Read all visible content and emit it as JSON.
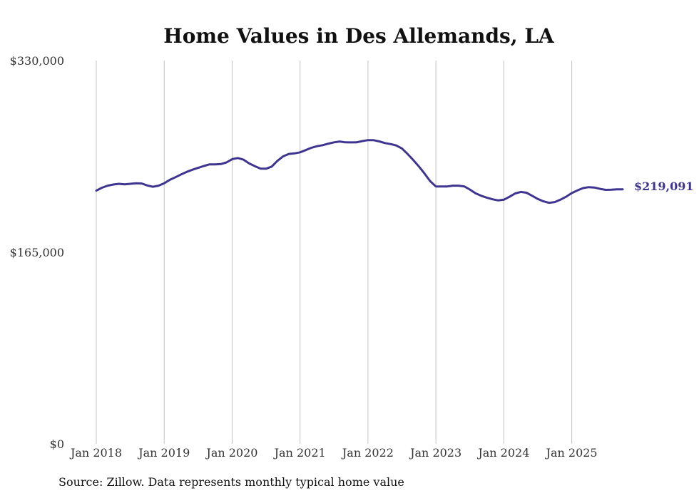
{
  "chart_data": {
    "type": "line",
    "title": "Home Values in Des Allemands, LA",
    "xlabel": "",
    "ylabel": "",
    "ylim": [
      0,
      330000
    ],
    "y_ticks": [
      {
        "value": 0,
        "label": "$0"
      },
      {
        "value": 165000,
        "label": "$165,000"
      },
      {
        "value": 330000,
        "label": "$330,000"
      }
    ],
    "x_ticks": [
      {
        "value": 2018,
        "label": "Jan 2018"
      },
      {
        "value": 2019,
        "label": "Jan 2019"
      },
      {
        "value": 2020,
        "label": "Jan 2020"
      },
      {
        "value": 2021,
        "label": "Jan 2021"
      },
      {
        "value": 2022,
        "label": "Jan 2022"
      },
      {
        "value": 2023,
        "label": "Jan 2023"
      },
      {
        "value": 2024,
        "label": "Jan 2024"
      },
      {
        "value": 2025,
        "label": "Jan 2025"
      }
    ],
    "xlim": [
      2018,
      2025.75
    ],
    "grid": "vertical",
    "line_color": "#3f3590",
    "end_label": "$219,091",
    "series": [
      {
        "x": [
          2018.0,
          2018.083,
          2018.167,
          2018.25,
          2018.333,
          2018.417,
          2018.5,
          2018.583,
          2018.667,
          2018.75,
          2018.833,
          2018.917,
          2019.0,
          2019.083,
          2019.167,
          2019.25,
          2019.333,
          2019.417,
          2019.5,
          2019.583,
          2019.667,
          2019.75,
          2019.833,
          2019.917,
          2020.0,
          2020.083,
          2020.167,
          2020.25,
          2020.333,
          2020.417,
          2020.5,
          2020.583,
          2020.667,
          2020.75,
          2020.833,
          2020.917,
          2021.0,
          2021.083,
          2021.167,
          2021.25,
          2021.333,
          2021.417,
          2021.5,
          2021.583,
          2021.667,
          2021.75,
          2021.833,
          2021.917,
          2022.0,
          2022.083,
          2022.167,
          2022.25,
          2022.333,
          2022.417,
          2022.5,
          2022.583,
          2022.667,
          2022.75,
          2022.833,
          2022.917,
          2023.0,
          2023.083,
          2023.167,
          2023.25,
          2023.333,
          2023.417,
          2023.5,
          2023.583,
          2023.667,
          2023.75,
          2023.833,
          2023.917,
          2024.0,
          2024.083,
          2024.167,
          2024.25,
          2024.333,
          2024.417,
          2024.5,
          2024.583,
          2024.667,
          2024.75,
          2024.833,
          2024.917,
          2025.0,
          2025.083,
          2025.167,
          2025.25,
          2025.333,
          2025.417,
          2025.5,
          2025.583,
          2025.667,
          2025.75
        ],
        "values": [
          218000,
          220500,
          222300,
          223300,
          223900,
          223400,
          223900,
          224300,
          224200,
          222500,
          221400,
          222300,
          224400,
          227300,
          229600,
          232000,
          234200,
          236000,
          237600,
          239200,
          240600,
          240600,
          240900,
          242300,
          245100,
          246100,
          244700,
          241400,
          239100,
          237000,
          236900,
          238700,
          243700,
          247500,
          249600,
          250100,
          251000,
          252900,
          254900,
          256300,
          257100,
          258500,
          259600,
          260300,
          259600,
          259500,
          259600,
          260700,
          261500,
          261400,
          260400,
          259000,
          258100,
          256900,
          254300,
          249600,
          244400,
          238800,
          232700,
          226100,
          221600,
          221600,
          221600,
          222300,
          222300,
          221700,
          219000,
          215700,
          213600,
          212000,
          210600,
          209600,
          210200,
          212700,
          215600,
          216900,
          216200,
          213600,
          210800,
          208800,
          207500,
          208200,
          210200,
          212800,
          215900,
          218200,
          220200,
          221000,
          220700,
          219500,
          218700,
          218800,
          219091,
          219091
        ]
      }
    ]
  },
  "footer": {
    "source": "Source: Zillow. Data represents monthly typical home value"
  }
}
